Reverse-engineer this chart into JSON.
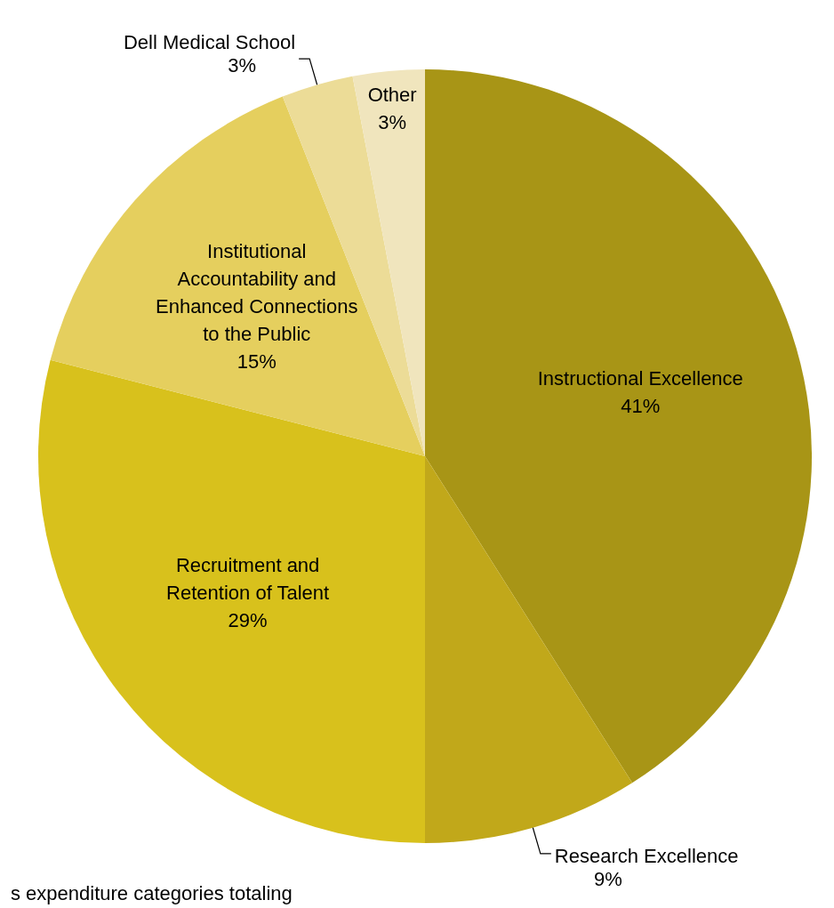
{
  "chart_data": {
    "type": "pie",
    "categories": [
      "Instructional Excellence",
      "Research Excellence",
      "Recruitment and Retention of Talent",
      "Institutional Accountability and Enhanced Connections to the Public",
      "Dell Medical School",
      "Other"
    ],
    "values": [
      41,
      9,
      29,
      15,
      3,
      3
    ],
    "value_labels": [
      "41%",
      "9%",
      "29%",
      "15%",
      "3%",
      "3%"
    ],
    "colors": [
      "#a89516",
      "#c1a81a",
      "#d8c11c",
      "#e5cf5e",
      "#ecdc97",
      "#f0e5bd"
    ],
    "annotations": [
      "s expenditure categories totaling"
    ]
  }
}
